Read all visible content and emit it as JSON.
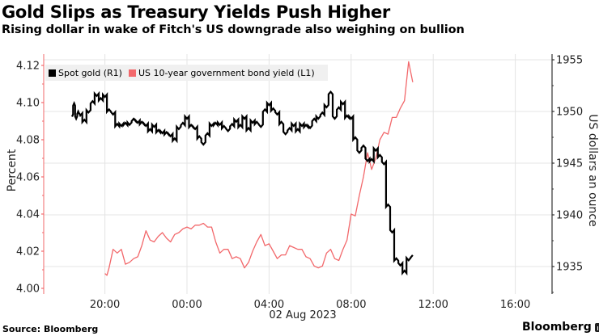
{
  "header": {
    "title": "Gold Slips as Treasury Yields Push Higher",
    "subtitle": "Rising dollar in wake of Fitch's US downgrade also weighing on bullion"
  },
  "legend": {
    "items": [
      {
        "label": "Spot gold (R1)",
        "color": "#000000"
      },
      {
        "label": "US 10-year government bond yield (L1)",
        "color": "#f2686b"
      }
    ]
  },
  "footer": {
    "source": "Source: Bloomberg",
    "brand": "Bloomberg"
  },
  "chart_data": {
    "type": "line",
    "title": "Gold Slips as Treasury Yields Push Higher",
    "subtitle": "Rising dollar in wake of Fitch's US downgrade also weighing on bullion",
    "xlabel": "02 Aug 2023",
    "x_ticks": [
      "20:00",
      "00:00",
      "04:00",
      "08:00",
      "12:00",
      "16:00"
    ],
    "x_tick_hours": [
      -4,
      0,
      4,
      8,
      12,
      16
    ],
    "x_unit": "hours relative to 00:00 02 Aug 2023",
    "grid": true,
    "legend_position": "top-left",
    "left_axis": {
      "label": "Percent",
      "ticks": [
        "4.00",
        "4.02",
        "4.04",
        "4.06",
        "4.08",
        "4.10",
        "4.12"
      ],
      "range": [
        3.998,
        4.125
      ],
      "color": "#f2686b"
    },
    "right_axis": {
      "label": "US dollars an ounce",
      "ticks": [
        "1935",
        "1940",
        "1945",
        "1950",
        "1955"
      ],
      "range": [
        1932.3,
        1955.7
      ],
      "color": "#000000"
    },
    "series": [
      {
        "name": "Spot gold (R1)",
        "axis": "right",
        "color": "#000000",
        "x": [
          -5.6,
          -5.5,
          -5.4,
          -5.3,
          -5.2,
          -5.0,
          -4.8,
          -4.6,
          -4.4,
          -4.2,
          -4.0,
          -3.8,
          -3.6,
          -3.4,
          -3.2,
          -3.0,
          -2.8,
          -2.6,
          -2.4,
          -2.2,
          -2.0,
          -1.8,
          -1.6,
          -1.4,
          -1.2,
          -1.0,
          -0.8,
          -0.6,
          -0.4,
          -0.2,
          0.0,
          0.2,
          0.4,
          0.6,
          0.8,
          1.0,
          1.2,
          1.4,
          1.6,
          1.8,
          2.0,
          2.2,
          2.4,
          2.6,
          2.8,
          3.0,
          3.2,
          3.4,
          3.6,
          3.8,
          4.0,
          4.2,
          4.4,
          4.6,
          4.8,
          5.0,
          5.2,
          5.4,
          5.6,
          5.8,
          6.0,
          6.2,
          6.4,
          6.6,
          6.8,
          7.0,
          7.2,
          7.4,
          7.6,
          7.8,
          8.0,
          8.2,
          8.4,
          8.6,
          8.8,
          9.0,
          9.2,
          9.4,
          9.6,
          9.8,
          10.0,
          10.2,
          10.4,
          10.6,
          10.8,
          11.0
        ],
        "values": [
          1949.5,
          1950.8,
          1949.3,
          1950.0,
          1949.6,
          1949.2,
          1949.9,
          1951.0,
          1951.5,
          1951.3,
          1951.4,
          1950.2,
          1949.7,
          1948.8,
          1948.6,
          1948.9,
          1948.7,
          1949.3,
          1948.9,
          1949.0,
          1948.6,
          1948.3,
          1948.5,
          1948.2,
          1947.9,
          1948.0,
          1947.6,
          1947.4,
          1948.3,
          1948.9,
          1949.3,
          1948.7,
          1948.3,
          1947.6,
          1946.8,
          1947.9,
          1948.6,
          1948.9,
          1948.7,
          1948.6,
          1948.1,
          1948.8,
          1949.0,
          1948.7,
          1949.3,
          1948.4,
          1948.9,
          1949.0,
          1948.5,
          1950.2,
          1950.6,
          1950.3,
          1949.7,
          1949.0,
          1947.8,
          1948.4,
          1948.6,
          1948.3,
          1948.6,
          1948.7,
          1948.4,
          1949.3,
          1949.3,
          1949.9,
          1950.4,
          1951.9,
          1949.3,
          1950.4,
          1950.7,
          1949.6,
          1949.3,
          1947.5,
          1946.0,
          1946.7,
          1945.2,
          1945.4,
          1946.2,
          1945.8,
          1944.9,
          1941.0,
          1938.3,
          1935.8,
          1935.1,
          1934.6,
          1935.6,
          1936.1
        ]
      },
      {
        "name": "US 10-year government bond yield (L1)",
        "axis": "left",
        "color": "#f2686b",
        "x": [
          -4.0,
          -3.9,
          -3.8,
          -3.6,
          -3.4,
          -3.2,
          -3.0,
          -2.8,
          -2.6,
          -2.4,
          -2.2,
          -2.0,
          -1.8,
          -1.6,
          -1.4,
          -1.2,
          -1.0,
          -0.8,
          -0.6,
          -0.4,
          -0.2,
          0.0,
          0.2,
          0.4,
          0.6,
          0.8,
          1.0,
          1.2,
          1.4,
          1.6,
          1.8,
          2.0,
          2.2,
          2.4,
          2.6,
          2.8,
          3.0,
          3.2,
          3.4,
          3.6,
          3.8,
          4.0,
          4.2,
          4.4,
          4.6,
          4.8,
          5.0,
          5.2,
          5.4,
          5.6,
          5.8,
          6.0,
          6.2,
          6.4,
          6.6,
          6.8,
          7.0,
          7.2,
          7.4,
          7.6,
          7.8,
          8.0,
          8.2,
          8.4,
          8.6,
          8.8,
          9.0,
          9.2,
          9.4,
          9.6,
          9.8,
          10.0,
          10.2,
          10.4,
          10.6,
          10.8,
          11.0
        ],
        "values": [
          4.008,
          4.007,
          4.011,
          4.021,
          4.019,
          4.021,
          4.013,
          4.014,
          4.016,
          4.017,
          4.023,
          4.031,
          4.026,
          4.025,
          4.028,
          4.03,
          4.027,
          4.025,
          4.029,
          4.03,
          4.032,
          4.033,
          4.032,
          4.034,
          4.034,
          4.035,
          4.033,
          4.033,
          4.025,
          4.019,
          4.021,
          4.021,
          4.016,
          4.017,
          4.016,
          4.011,
          4.014,
          4.02,
          4.025,
          4.029,
          4.023,
          4.024,
          4.02,
          4.016,
          4.018,
          4.018,
          4.023,
          4.022,
          4.021,
          4.021,
          4.017,
          4.016,
          4.012,
          4.011,
          4.012,
          4.019,
          4.021,
          4.016,
          4.015,
          4.021,
          4.026,
          4.04,
          4.039,
          4.05,
          4.06,
          4.073,
          4.064,
          4.07,
          4.08,
          4.084,
          4.083,
          4.092,
          4.092,
          4.097,
          4.101,
          4.122,
          4.111
        ]
      }
    ]
  }
}
